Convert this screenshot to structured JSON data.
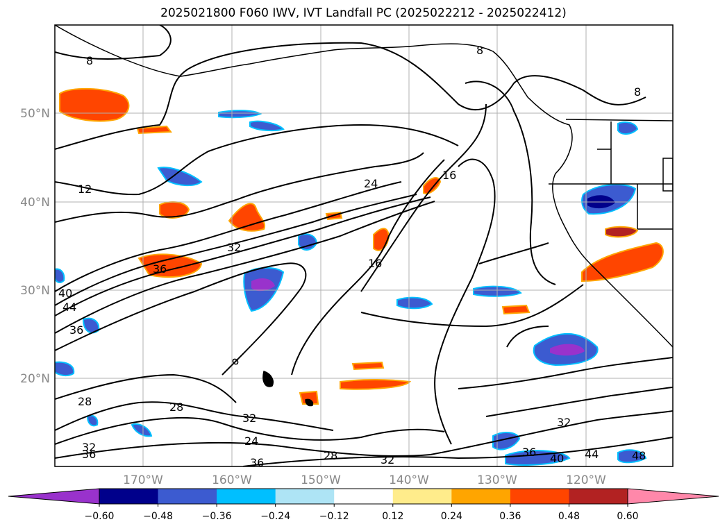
{
  "title": "2025021800 F060 IWV, IVT Landfall PC (2025022212 - 2025022412)",
  "lat_labels": [
    "50°N",
    "40°N",
    "30°N",
    "20°N"
  ],
  "lon_labels": [
    "170°W",
    "160°W",
    "150°W",
    "140°W",
    "130°W",
    "120°W"
  ],
  "contour_labels": [
    "8",
    "12",
    "24",
    "16",
    "32",
    "36",
    "40",
    "44",
    "36",
    "28",
    "28",
    "32",
    "24",
    "36",
    "28",
    "32",
    "32",
    "36",
    "40",
    "44",
    "48",
    "8",
    "8",
    "36",
    "32",
    "16"
  ],
  "colorbar": {
    "ticks": [
      "−0.60",
      "−0.48",
      "−0.36",
      "−0.24",
      "−0.12",
      "0.12",
      "0.24",
      "0.36",
      "0.48",
      "0.60"
    ],
    "colors": [
      "#9932cc",
      "#00008b",
      "#3c5bd0",
      "#00bfff",
      "#aee4f5",
      "#ffffff",
      "#ffec8b",
      "#ffa500",
      "#ff4500",
      "#b22222",
      "#ff88aa"
    ]
  }
}
